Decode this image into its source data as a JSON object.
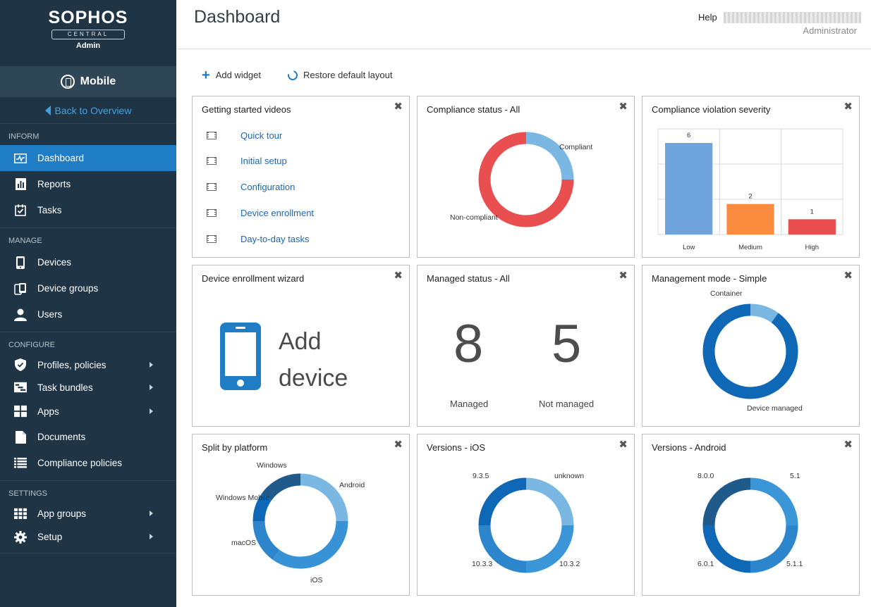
{
  "brand": {
    "name": "SOPHOS",
    "sub": "CENTRAL",
    "role": "Admin"
  },
  "product": {
    "name": "Mobile"
  },
  "back_link": "Back to Overview",
  "sidebar": {
    "inform": {
      "title": "INFORM",
      "items": [
        {
          "label": "Dashboard"
        },
        {
          "label": "Reports"
        },
        {
          "label": "Tasks"
        }
      ]
    },
    "manage": {
      "title": "MANAGE",
      "items": [
        {
          "label": "Devices"
        },
        {
          "label": "Device groups"
        },
        {
          "label": "Users"
        }
      ]
    },
    "configure": {
      "title": "CONFIGURE",
      "items": [
        {
          "label": "Profiles, policies"
        },
        {
          "label": "Task bundles"
        },
        {
          "label": "Apps"
        },
        {
          "label": "Documents"
        },
        {
          "label": "Compliance policies"
        }
      ]
    },
    "settings": {
      "title": "SETTINGS",
      "items": [
        {
          "label": "App groups"
        },
        {
          "label": "Setup"
        }
      ]
    }
  },
  "header": {
    "title": "Dashboard",
    "help": "Help",
    "user_role": "Administrator"
  },
  "toolbar": {
    "add_widget": "Add widget",
    "restore_layout": "Restore default layout"
  },
  "colors": {
    "accent": "#1f7dc6",
    "sidebar": "#1f3444",
    "red": "#ea4f4f",
    "light_blue": "#7ab7e3",
    "bar_blue": "#6fa4dc",
    "bar_orange": "#fb8b3f",
    "dark_blue": "#0e68b5"
  },
  "widgets": {
    "videos": {
      "title": "Getting started videos",
      "items": [
        "Quick tour",
        "Initial setup",
        "Configuration",
        "Device enrollment",
        "Day-to-day tasks"
      ]
    },
    "compliance_status": {
      "title": "Compliance status - All",
      "labels": {
        "compliant": "Compliant",
        "noncompliant": "Non-compliant"
      }
    },
    "severity": {
      "title": "Compliance violation severity"
    },
    "enrollment": {
      "title": "Device enrollment wizard",
      "line1": "Add",
      "line2": "device"
    },
    "managed": {
      "title": "Managed status - All",
      "managed_count": "8",
      "managed_label": "Managed",
      "unmanaged_count": "5",
      "unmanaged_label": "Not managed"
    },
    "mode": {
      "title": "Management mode - Simple",
      "labels": {
        "container": "Container",
        "device": "Device managed"
      }
    },
    "platform": {
      "title": "Split by platform",
      "labels": {
        "windows": "Windows",
        "android": "Android",
        "winmobile": "Windows Mobile",
        "macos": "macOS",
        "ios": "iOS"
      }
    },
    "ios": {
      "title": "Versions - iOS",
      "labels": {
        "a": "9.3.5",
        "b": "unknown",
        "c": "10.3.3",
        "d": "10.3.2"
      }
    },
    "android": {
      "title": "Versions - Android",
      "labels": {
        "a": "8.0.0",
        "b": "5.1",
        "c": "6.0.1",
        "d": "5.1.1"
      }
    }
  },
  "chart_data": [
    {
      "type": "pie",
      "title": "Compliance status - All",
      "categories": [
        "Compliant",
        "Non-compliant"
      ],
      "values": [
        25,
        75
      ]
    },
    {
      "type": "bar",
      "title": "Compliance violation severity",
      "categories": [
        "Low",
        "Medium",
        "High"
      ],
      "values": [
        6,
        2,
        1
      ],
      "ylim": [
        0,
        6
      ],
      "grid": true
    },
    {
      "type": "pie",
      "title": "Management mode - Simple",
      "categories": [
        "Container",
        "Device managed"
      ],
      "values": [
        10,
        90
      ]
    },
    {
      "type": "pie",
      "title": "Split by platform",
      "categories": [
        "Android",
        "iOS",
        "macOS",
        "Windows Mobile",
        "Windows"
      ],
      "values": [
        25,
        35,
        15,
        10,
        15
      ]
    },
    {
      "type": "pie",
      "title": "Versions - iOS",
      "categories": [
        "unknown",
        "10.3.2",
        "10.3.3",
        "9.3.5"
      ],
      "values": [
        25,
        25,
        25,
        25
      ]
    },
    {
      "type": "pie",
      "title": "Versions - Android",
      "categories": [
        "5.1",
        "5.1.1",
        "6.0.1",
        "8.0.0"
      ],
      "values": [
        25,
        25,
        25,
        25
      ]
    }
  ]
}
